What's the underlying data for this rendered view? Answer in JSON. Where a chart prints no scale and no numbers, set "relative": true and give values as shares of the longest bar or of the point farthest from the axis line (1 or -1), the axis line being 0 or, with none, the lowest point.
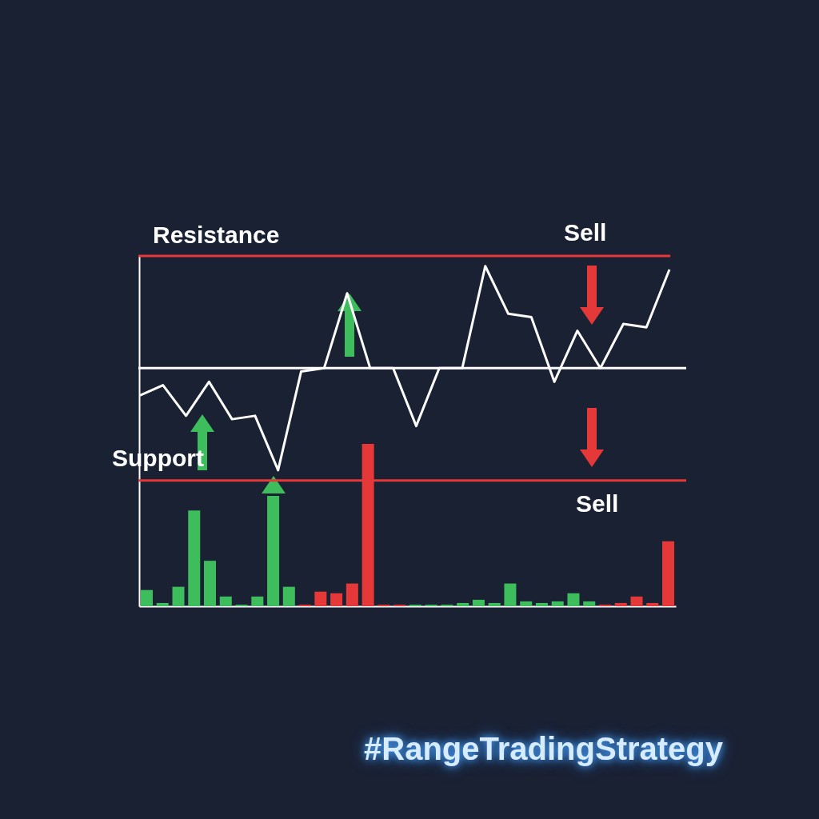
{
  "chart_data": [
    {
      "type": "line",
      "relative": true,
      "legend": false,
      "grid": false,
      "categories": [
        null,
        null,
        null,
        null,
        null,
        null,
        null,
        null,
        null,
        null,
        null,
        null,
        null,
        null,
        null,
        null,
        null,
        null,
        null,
        null,
        null,
        null,
        null,
        null
      ],
      "series": [
        {
          "color": "#ffffff",
          "values": [
            0.62,
            0.65,
            0.56,
            0.66,
            0.55,
            0.56,
            0.4,
            0.69,
            0.7,
            0.92,
            0.7,
            0.7,
            0.53,
            0.7,
            0.7,
            1,
            0.86,
            0.85,
            0.66,
            0.81,
            0.7,
            0.83,
            0.82,
            0.99
          ]
        }
      ],
      "ref_lines": [
        {
          "axis": "y",
          "value": 1.03,
          "label": "Resistance",
          "color": "#e53838"
        },
        {
          "axis": "y",
          "value": 0.7,
          "label": null,
          "color": "#ffffff"
        },
        {
          "axis": "y",
          "value": 0.37,
          "label": "Support",
          "color": "#e53838"
        }
      ],
      "annotations": [
        "Sell",
        "Sell",
        "#RangeTradingStrategy"
      ]
    },
    {
      "type": "bar",
      "relative": true,
      "legend": false,
      "grid": false,
      "categories": [
        null,
        null,
        null,
        null,
        null,
        null,
        null,
        null,
        null,
        null,
        null,
        null,
        null,
        null,
        null,
        null,
        null,
        null,
        null,
        null,
        null,
        null,
        null,
        null,
        null,
        null,
        null,
        null,
        null,
        null,
        null,
        null,
        null,
        null
      ],
      "colors": [
        "#3dbd5c",
        "#3dbd5c",
        "#3dbd5c",
        "#3dbd5c",
        "#3dbd5c",
        "#3dbd5c",
        "#3dbd5c",
        "#3dbd5c",
        "#3dbd5c",
        "#3dbd5c",
        "#e53838",
        "#e53838",
        "#e53838",
        "#e53838",
        "#e53838",
        "#e53838",
        "#e53838",
        "#3dbd5c",
        "#3dbd5c",
        "#3dbd5c",
        "#3dbd5c",
        "#3dbd5c",
        "#3dbd5c",
        "#3dbd5c",
        "#3dbd5c",
        "#3dbd5c",
        "#3dbd5c",
        "#3dbd5c",
        "#3dbd5c",
        "#e53838",
        "#e53838",
        "#e53838",
        "#e53838",
        "#e53838"
      ],
      "values": [
        0.1,
        0.02,
        0.12,
        0.59,
        0.28,
        0.06,
        0.01,
        0.06,
        0.68,
        0.12,
        0.01,
        0.09,
        0.08,
        0.14,
        1,
        0.01,
        0.01,
        0.01,
        0.01,
        0.01,
        0.02,
        0.04,
        0.02,
        0.14,
        0.03,
        0.02,
        0.03,
        0.08,
        0.03,
        0.01,
        0.02,
        0.06,
        0.02,
        0.4
      ]
    }
  ]
}
